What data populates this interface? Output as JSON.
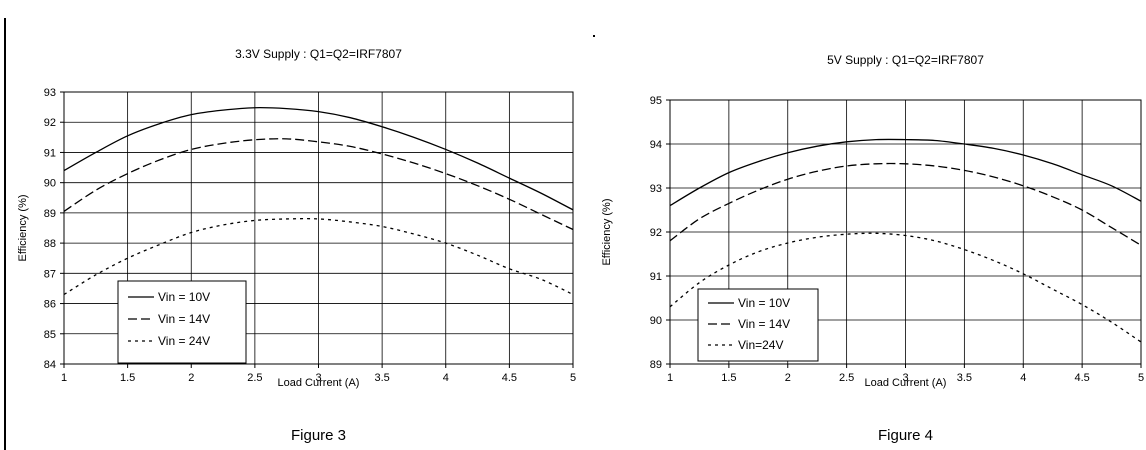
{
  "charts": [
    {
      "figure_caption": "Figure 3",
      "chart_data": {
        "type": "line",
        "title": "3.3V Supply : Q1=Q2=IRF7807",
        "xlabel": "Load Current (A)",
        "ylabel": "Efficiency (%)",
        "xlim": [
          1,
          5
        ],
        "ylim": [
          84,
          93
        ],
        "xticks": [
          "1",
          "1.5",
          "2",
          "2.5",
          "3",
          "3.5",
          "4",
          "4.5",
          "5"
        ],
        "yticks": [
          "84",
          "85",
          "86",
          "87",
          "88",
          "89",
          "90",
          "91",
          "92",
          "93"
        ],
        "grid": true,
        "legend_position": "bottom-left",
        "x": [
          1,
          1.25,
          1.5,
          1.75,
          2,
          2.25,
          2.5,
          2.75,
          3,
          3.25,
          3.5,
          3.75,
          4,
          4.25,
          4.5,
          4.75,
          5
        ],
        "series": [
          {
            "name": "Vin = 10V",
            "style": "solid",
            "values": [
              90.4,
              91.0,
              91.55,
              91.95,
              92.25,
              92.4,
              92.48,
              92.45,
              92.35,
              92.15,
              91.85,
              91.5,
              91.1,
              90.65,
              90.15,
              89.65,
              89.1
            ]
          },
          {
            "name": "Vin = 14V",
            "style": "dashed",
            "values": [
              89.05,
              89.75,
              90.3,
              90.75,
              91.1,
              91.3,
              91.42,
              91.45,
              91.35,
              91.2,
              90.95,
              90.65,
              90.3,
              89.9,
              89.45,
              88.95,
              88.45
            ]
          },
          {
            "name": "Vin = 24V",
            "style": "dotted",
            "values": [
              86.3,
              86.95,
              87.5,
              87.95,
              88.35,
              88.6,
              88.75,
              88.8,
              88.8,
              88.7,
              88.55,
              88.3,
              88.0,
              87.6,
              87.15,
              86.8,
              86.3
            ]
          }
        ]
      }
    },
    {
      "figure_caption": "Figure 4",
      "chart_data": {
        "type": "line",
        "title": "5V Supply : Q1=Q2=IRF7807",
        "xlabel": "Load Current (A)",
        "ylabel": "Efficiency (%)",
        "xlim": [
          1,
          5
        ],
        "ylim": [
          89,
          95
        ],
        "xticks": [
          "1",
          "1.5",
          "2",
          "2.5",
          "3",
          "3.5",
          "4",
          "4.5",
          "5"
        ],
        "yticks": [
          "89",
          "90",
          "91",
          "92",
          "93",
          "94",
          "95"
        ],
        "grid": true,
        "legend_position": "bottom-left",
        "x": [
          1,
          1.25,
          1.5,
          1.75,
          2,
          2.25,
          2.5,
          2.75,
          3,
          3.25,
          3.5,
          3.75,
          4,
          4.25,
          4.5,
          4.75,
          5
        ],
        "series": [
          {
            "name": "Vin = 10V",
            "style": "solid",
            "values": [
              92.6,
              93.0,
              93.35,
              93.6,
              93.8,
              93.95,
              94.05,
              94.1,
              94.1,
              94.08,
              94.0,
              93.9,
              93.75,
              93.55,
              93.3,
              93.05,
              92.7
            ]
          },
          {
            "name": "Vin = 14V",
            "style": "dashed",
            "values": [
              91.8,
              92.3,
              92.65,
              92.95,
              93.2,
              93.38,
              93.5,
              93.55,
              93.55,
              93.5,
              93.4,
              93.25,
              93.05,
              92.8,
              92.5,
              92.1,
              91.7
            ]
          },
          {
            "name": "Vin=24V",
            "style": "dotted",
            "values": [
              90.3,
              90.85,
              91.25,
              91.55,
              91.75,
              91.88,
              91.95,
              91.97,
              91.92,
              91.8,
              91.6,
              91.35,
              91.05,
              90.7,
              90.35,
              89.95,
              89.5
            ]
          }
        ]
      }
    }
  ]
}
